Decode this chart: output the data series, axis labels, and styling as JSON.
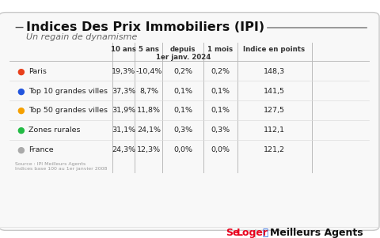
{
  "title": "Indices Des Prix Immobiliers (IPI)",
  "subtitle": "Un regain de dynamisme",
  "bg_color": "#ffffff",
  "rows": [
    {
      "label": "Paris",
      "color": "#e8401c",
      "vals": [
        "19,3%",
        "-10,4%",
        "0,2%",
        "0,2%",
        "148,3"
      ]
    },
    {
      "label": "Top 10 grandes villes",
      "color": "#2255dd",
      "vals": [
        "37,3%",
        "8,7%",
        "0,1%",
        "0,1%",
        "141,5"
      ]
    },
    {
      "label": "Top 50 grandes villes",
      "color": "#f5a000",
      "vals": [
        "31,9%",
        "11,8%",
        "0,1%",
        "0,1%",
        "127,5"
      ]
    },
    {
      "label": "Zones rurales",
      "color": "#22bb44",
      "vals": [
        "31,1%",
        "24,1%",
        "0,3%",
        "0,3%",
        "112,1"
      ]
    },
    {
      "label": "France",
      "color": "#aaaaaa",
      "vals": [
        "24,3%",
        "12,3%",
        "0,0%",
        "0,0%",
        "121,2"
      ]
    }
  ],
  "col_headers": [
    "10 ans",
    "5 ans",
    "depuis\n1er janv. 2024",
    "1 mois",
    "Indice en points"
  ],
  "source_line1": "Source : IPI Meilleurs Agents",
  "source_line2": "Indices base 100 au 1er janvier 2008",
  "seloger_color": "#e8001c",
  "ma_icon_color": "#1a56db"
}
